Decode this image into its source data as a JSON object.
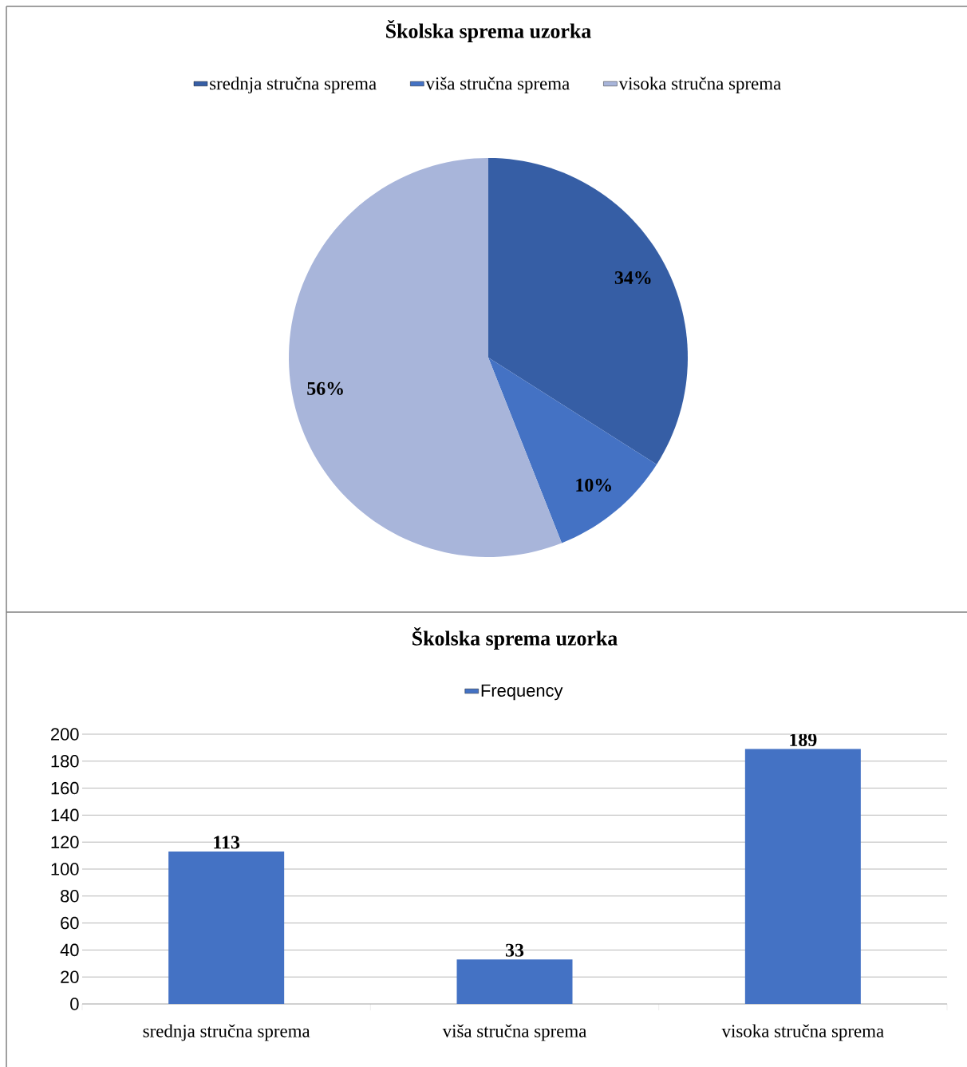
{
  "chart_data": [
    {
      "type": "pie",
      "title": "Školska sprema uzorka",
      "categories": [
        "srednja stručna sprema",
        "viša stručna sprema",
        "visoka stručna sprema"
      ],
      "values": [
        34,
        10,
        56
      ],
      "colors": [
        "#365ea5",
        "#4472c4",
        "#a8b5da"
      ],
      "value_labels": [
        "34%",
        "10%",
        "56%"
      ],
      "legend": "top"
    },
    {
      "type": "bar",
      "title": "Školska sprema uzorka",
      "categories": [
        "srednja stručna sprema",
        "viša stručna sprema",
        "visoka stručna sprema"
      ],
      "series": [
        {
          "name": "Frequency",
          "color": "#4472c4",
          "values": [
            113,
            33,
            189
          ]
        }
      ],
      "ylim": [
        0,
        200
      ],
      "yticks": [
        0,
        20,
        40,
        60,
        80,
        100,
        120,
        140,
        160,
        180,
        200
      ],
      "grid": "y",
      "legend": "top",
      "data_labels": true
    }
  ]
}
